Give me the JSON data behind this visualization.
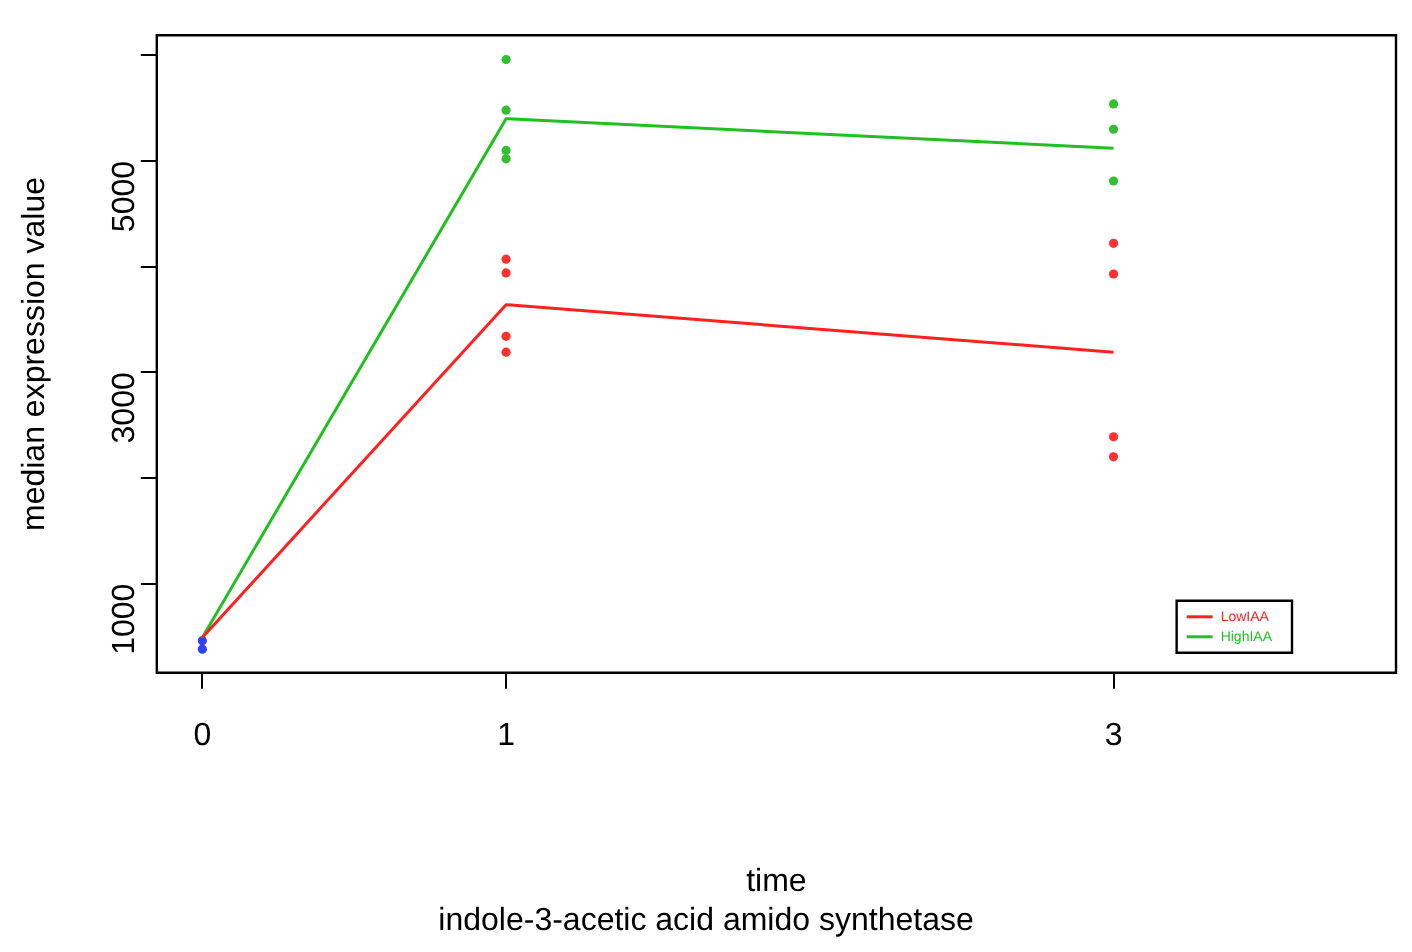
{
  "chart_data": {
    "type": "line",
    "title": "indole-3-acetic acid amido synthetase",
    "xlabel": "time",
    "ylabel": "median expression value",
    "xlim": [
      -0.15,
      3.93
    ],
    "xticks": [
      0,
      1,
      3
    ],
    "ylim": [
      156,
      6190
    ],
    "yticks": [
      {
        "value": 1000,
        "label": "1000"
      },
      {
        "value": 2000,
        "label": null
      },
      {
        "value": 3000,
        "label": "3000"
      },
      {
        "value": 4000,
        "label": null
      },
      {
        "value": 5000,
        "label": "5000"
      },
      {
        "value": 6000,
        "label": null
      }
    ],
    "grid": false,
    "legend": "bottom right",
    "series": [
      {
        "name": "LowIAA",
        "color": "#ff2020",
        "x": [
          0,
          1,
          3
        ],
        "values": [
          490,
          3640,
          3190
        ],
        "marker": "none"
      },
      {
        "name": "HighIAA",
        "color": "#20c020",
        "x": [
          0,
          1,
          3
        ],
        "values": [
          490,
          5400,
          5120
        ],
        "marker": "none"
      },
      {
        "type": "scatter",
        "color": "#ff3030",
        "x": [
          1,
          1,
          1,
          1,
          3,
          3,
          3,
          3
        ],
        "values": [
          4070,
          3940,
          3340,
          3190,
          4220,
          3930,
          2390,
          2200
        ],
        "marker": "circle"
      },
      {
        "type": "scatter",
        "color": "#30c030",
        "x": [
          1,
          1,
          1,
          1,
          3,
          3,
          3
        ],
        "values": [
          5960,
          5480,
          5100,
          5020,
          5540,
          5300,
          4810
        ],
        "marker": "circle"
      },
      {
        "type": "scatter",
        "color": "#3040ff",
        "x": [
          0,
          0
        ],
        "values": [
          460,
          380
        ],
        "marker": "circle"
      }
    ]
  }
}
